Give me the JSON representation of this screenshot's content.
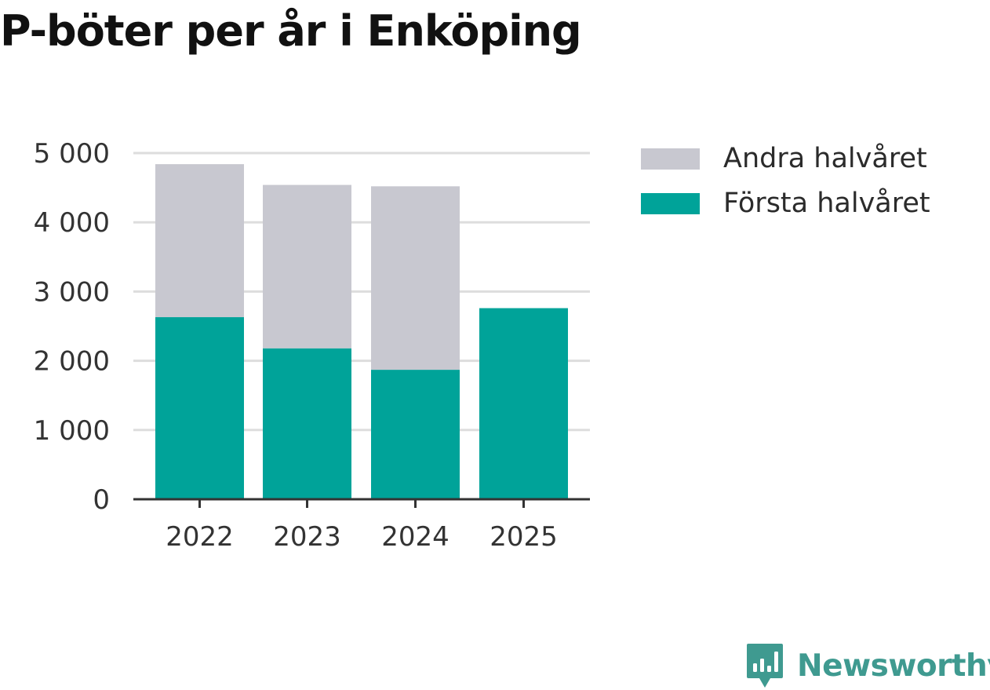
{
  "colors": {
    "forsta": "#00a399",
    "andra": "#c8c8d0",
    "grid": "#dddddd",
    "axis": "#333333",
    "tick_text": "#333333",
    "brand": "#3f9a90"
  },
  "chart_data": {
    "type": "bar",
    "stacked": true,
    "title": "P-böter per år i Enköping",
    "categories": [
      "2022",
      "2023",
      "2024",
      "2025"
    ],
    "series": [
      {
        "name": "Första halvåret",
        "color": "#00a399",
        "values": [
          2630,
          2180,
          1870,
          2760
        ]
      },
      {
        "name": "Andra halvåret",
        "color": "#c8c8d0",
        "values": [
          2210,
          2360,
          2650,
          0
        ]
      }
    ],
    "xlabel": "",
    "ylabel": "",
    "ylim": [
      0,
      5000
    ],
    "yticks": [
      0,
      1000,
      2000,
      3000,
      4000,
      5000
    ],
    "ytick_labels": [
      "0",
      "1 000",
      "2 000",
      "3 000",
      "4 000",
      "5 000"
    ],
    "grid": true,
    "legend": {
      "placement": "right-top",
      "entries": [
        "Andra halvåret",
        "Första halvåret"
      ]
    }
  },
  "legend_items": [
    {
      "label": "Andra halvåret",
      "color": "#c8c8d0"
    },
    {
      "label": "Första halvåret",
      "color": "#00a399"
    }
  ],
  "brand": {
    "name": "Newsworthy",
    "icon": "newsworthy-logo-icon"
  }
}
